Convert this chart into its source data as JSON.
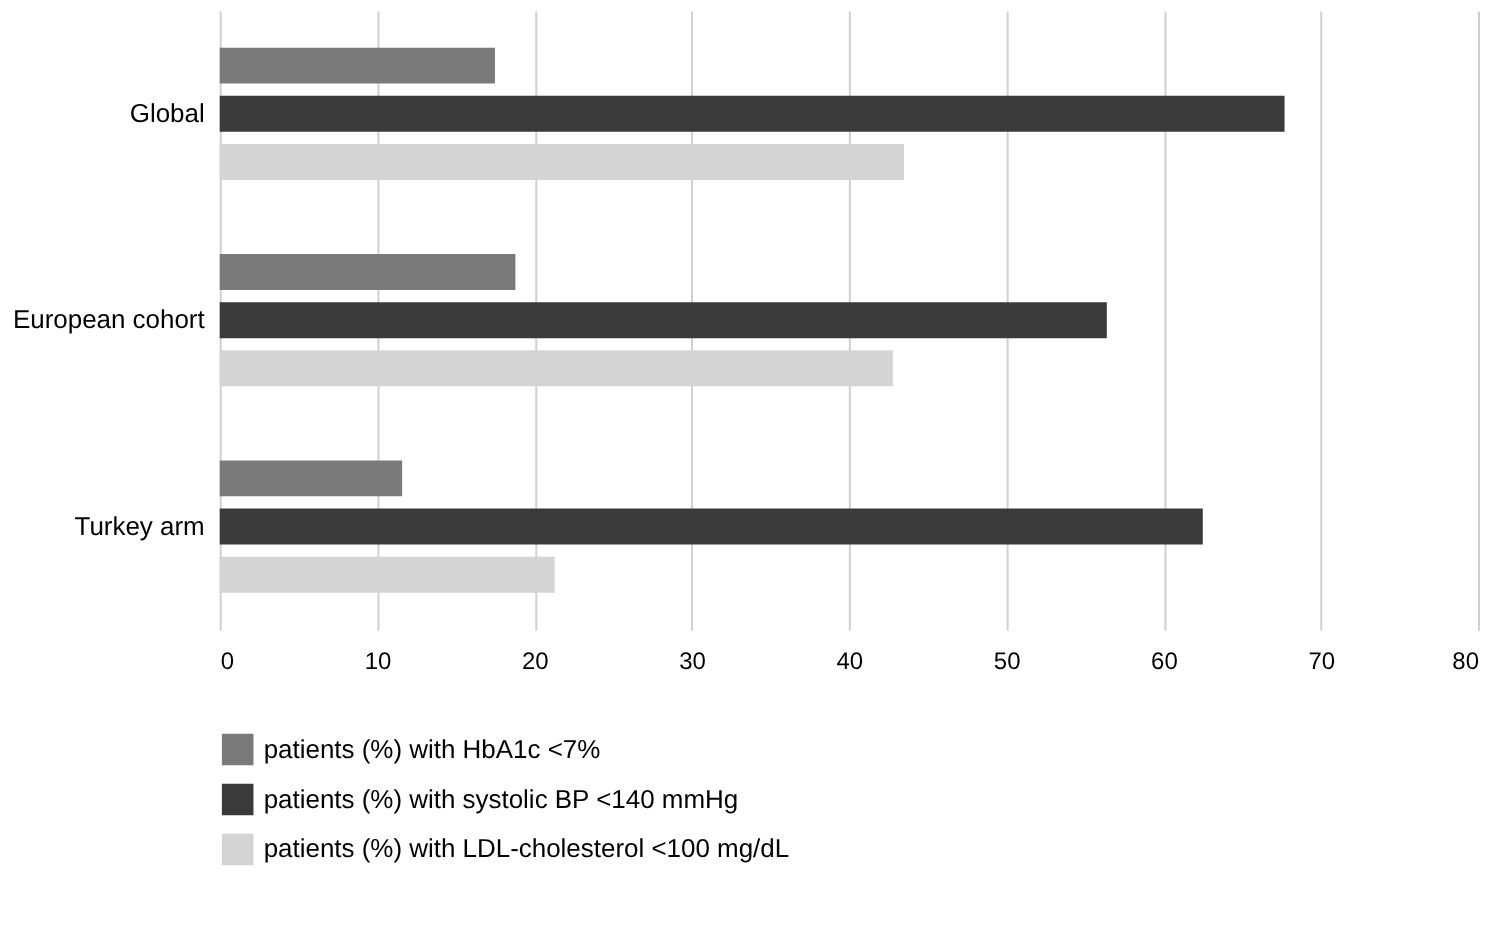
{
  "chart_data": {
    "type": "bar",
    "orientation": "horizontal",
    "categories": [
      "Global",
      "European cohort",
      "Turkey arm"
    ],
    "series": [
      {
        "name": "patients (%) with HbA1c <7%",
        "color": "#7a7a7a",
        "values": [
          17.5,
          18.8,
          11.6
        ]
      },
      {
        "name": "patients (%) with systolic BP <140 mmHg",
        "color": "#3a3a3a",
        "values": [
          67.7,
          56.4,
          62.5
        ]
      },
      {
        "name": "patients (%) with LDL-cholesterol <100 mg/dL",
        "color": "#d4d4d4",
        "values": [
          43.5,
          42.8,
          21.3
        ]
      }
    ],
    "xlim": [
      0,
      80
    ],
    "xticks": [
      0,
      10,
      20,
      30,
      40,
      50,
      60,
      70,
      80
    ],
    "grid": "x",
    "legend": "bottom"
  }
}
